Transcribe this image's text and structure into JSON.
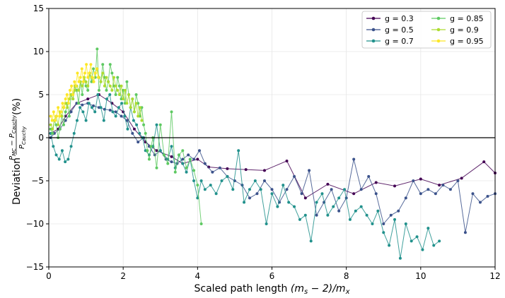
{
  "chart_data": {
    "type": "line",
    "title": "",
    "xlabel_parts": [
      "Scaled path length ",
      "(m",
      "s",
      " − 2)/m",
      "x"
    ],
    "ylabel_parts": [
      "Deviation ",
      "P",
      "MC",
      " − P",
      "Cauchy",
      "P",
      "Cauchy",
      "(%)"
    ],
    "xlim": [
      0,
      12
    ],
    "ylim": [
      -15,
      15
    ],
    "xticks": [
      0,
      2,
      4,
      6,
      8,
      10,
      12
    ],
    "yticks": [
      -15,
      -10,
      -5,
      0,
      5,
      10,
      15
    ],
    "xtick_labels": [
      "0",
      "2",
      "4",
      "6",
      "8",
      "10",
      "12"
    ],
    "ytick_labels": [
      "−15",
      "−10",
      "−5",
      "0",
      "5",
      "10",
      "15"
    ],
    "grid": true,
    "legend_position": "top-right",
    "reference_line": 0,
    "series": [
      {
        "name": "g = 0.3",
        "color": "#440154",
        "x": [
          0.05,
          0.25,
          0.45,
          0.75,
          1.05,
          1.35,
          1.7,
          2.0,
          2.3,
          2.6,
          2.9,
          3.3,
          3.6,
          4.0,
          4.3,
          4.8,
          5.3,
          5.8,
          6.4,
          6.9,
          7.5,
          8.2,
          8.8,
          9.3,
          10.0,
          10.5,
          11.1,
          11.7,
          12.0
        ],
        "y": [
          0.5,
          1.0,
          2.5,
          4.0,
          4.5,
          5.0,
          4.0,
          3.0,
          1.0,
          -0.5,
          -1.5,
          -2.2,
          -3.0,
          -2.5,
          -3.4,
          -3.6,
          -3.7,
          -3.8,
          -2.7,
          -7.0,
          -5.4,
          -6.5,
          -5.2,
          -5.6,
          -4.8,
          -5.5,
          -4.7,
          -2.8,
          -4.1
        ]
      },
      {
        "name": "g = 0.5",
        "color": "#3b528b",
        "x": [
          0.05,
          0.15,
          0.3,
          0.45,
          0.6,
          0.75,
          0.9,
          1.05,
          1.2,
          1.35,
          1.5,
          1.65,
          1.8,
          1.95,
          2.1,
          2.25,
          2.4,
          2.55,
          2.7,
          2.85,
          3.0,
          3.15,
          3.3,
          3.45,
          3.6,
          3.75,
          3.9,
          4.05,
          4.2,
          4.4,
          4.6,
          4.8,
          5.0,
          5.2,
          5.4,
          5.6,
          5.8,
          6.0,
          6.2,
          6.4,
          6.6,
          6.8,
          7.0,
          7.2,
          7.4,
          7.6,
          7.8,
          8.0,
          8.2,
          8.4,
          8.6,
          8.8,
          9.0,
          9.2,
          9.4,
          9.6,
          9.8,
          10.0,
          10.2,
          10.4,
          10.6,
          10.8,
          11.0,
          11.2,
          11.4,
          11.6,
          11.8,
          12.0
        ],
        "y": [
          0.0,
          0.5,
          1.0,
          2.0,
          3.0,
          4.0,
          3.8,
          4.0,
          3.7,
          3.5,
          3.3,
          3.2,
          3.0,
          2.5,
          2.0,
          0.5,
          -0.5,
          0.0,
          -1.0,
          -2.0,
          -1.5,
          -2.5,
          -2.8,
          -3.0,
          -2.5,
          -2.0,
          -2.5,
          -1.5,
          -3.0,
          -4.0,
          -3.5,
          -4.5,
          -5.0,
          -5.5,
          -7.0,
          -6.5,
          -5.0,
          -6.0,
          -7.5,
          -6.0,
          -4.5,
          -6.5,
          -3.8,
          -9.0,
          -7.5,
          -6.0,
          -8.5,
          -7.0,
          -2.5,
          -6.0,
          -4.5,
          -6.5,
          -10.0,
          -9.0,
          -8.5,
          -7.0,
          -5.0,
          -6.5,
          -6.0,
          -6.5,
          -5.5,
          -6.0,
          -5.0,
          -11.0,
          -6.5,
          -7.5,
          -6.8,
          -6.5
        ]
      },
      {
        "name": "g = 0.7",
        "color": "#21918c",
        "x": [
          0.05,
          0.12,
          0.2,
          0.28,
          0.36,
          0.44,
          0.52,
          0.6,
          0.68,
          0.76,
          0.84,
          0.92,
          1.0,
          1.08,
          1.16,
          1.24,
          1.32,
          1.4,
          1.48,
          1.56,
          1.64,
          1.72,
          1.8,
          1.88,
          1.96,
          2.04,
          2.12,
          2.2,
          2.28,
          2.36,
          2.44,
          2.52,
          2.6,
          2.7,
          2.8,
          2.9,
          3.0,
          3.1,
          3.2,
          3.3,
          3.4,
          3.5,
          3.6,
          3.7,
          3.8,
          3.9,
          4.0,
          4.1,
          4.2,
          4.35,
          4.5,
          4.65,
          4.8,
          4.95,
          5.1,
          5.25,
          5.4,
          5.55,
          5.7,
          5.85,
          6.0,
          6.15,
          6.3,
          6.45,
          6.6,
          6.75,
          6.9,
          7.05,
          7.2,
          7.35,
          7.5,
          7.65,
          7.8,
          7.95,
          8.1,
          8.25,
          8.4,
          8.55,
          8.7,
          8.85,
          9.0,
          9.15,
          9.3,
          9.45,
          9.6,
          9.75,
          9.9,
          10.05,
          10.2,
          10.35,
          10.5
        ],
        "y": [
          0.5,
          -1.0,
          -2.0,
          -2.5,
          -1.5,
          -2.8,
          -2.5,
          -1.0,
          0.5,
          2.0,
          3.5,
          3.0,
          2.0,
          4.0,
          3.5,
          3.0,
          5.0,
          3.5,
          2.0,
          4.5,
          5.0,
          3.0,
          2.5,
          3.5,
          4.0,
          2.5,
          1.0,
          3.5,
          2.0,
          1.5,
          0.5,
          0.0,
          -1.5,
          -2.0,
          -1.0,
          1.5,
          -1.5,
          -2.0,
          -2.5,
          -1.0,
          -3.5,
          -2.0,
          -3.0,
          -4.0,
          -2.5,
          -5.0,
          -7.0,
          -5.0,
          -6.0,
          -5.5,
          -6.5,
          -5.0,
          -4.5,
          -6.0,
          -1.5,
          -7.5,
          -6.0,
          -5.0,
          -6.0,
          -10.0,
          -6.5,
          -8.0,
          -5.5,
          -7.5,
          -8.0,
          -9.5,
          -9.0,
          -12.0,
          -7.5,
          -6.5,
          -9.0,
          -8.0,
          -7.0,
          -6.0,
          -9.5,
          -8.5,
          -8.0,
          -9.0,
          -10.0,
          -8.5,
          -11.0,
          -12.5,
          -9.5,
          -14.0,
          -10.0,
          -12.0,
          -11.5,
          -13.0,
          -10.5,
          -12.5,
          -12.0
        ]
      },
      {
        "name": "g = 0.85",
        "color": "#5ec962",
        "x": [
          0.05,
          0.1,
          0.15,
          0.2,
          0.25,
          0.3,
          0.35,
          0.4,
          0.45,
          0.5,
          0.55,
          0.6,
          0.65,
          0.7,
          0.75,
          0.8,
          0.85,
          0.9,
          0.95,
          1.0,
          1.05,
          1.1,
          1.15,
          1.2,
          1.25,
          1.3,
          1.35,
          1.4,
          1.45,
          1.5,
          1.55,
          1.6,
          1.65,
          1.7,
          1.75,
          1.8,
          1.85,
          1.9,
          1.95,
          2.0,
          2.05,
          2.1,
          2.15,
          2.2,
          2.25,
          2.3,
          2.35,
          2.4,
          2.45,
          2.5,
          2.55,
          2.6,
          2.65,
          2.7,
          2.75,
          2.8,
          2.9,
          3.0,
          3.1,
          3.2,
          3.3,
          3.4,
          3.5,
          3.6,
          3.7,
          3.8,
          3.9,
          4.0,
          4.1
        ],
        "y": [
          1.0,
          0.5,
          2.0,
          1.5,
          0.0,
          1.0,
          2.5,
          1.5,
          3.0,
          4.0,
          2.5,
          5.0,
          4.5,
          6.0,
          5.5,
          4.0,
          6.5,
          5.0,
          7.0,
          6.0,
          5.5,
          7.5,
          6.5,
          8.0,
          7.0,
          10.3,
          5.5,
          6.5,
          8.5,
          7.0,
          5.5,
          6.5,
          8.5,
          7.5,
          6.0,
          5.0,
          7.0,
          6.0,
          4.5,
          5.5,
          4.0,
          6.5,
          5.0,
          3.5,
          4.5,
          3.0,
          5.0,
          4.0,
          2.5,
          3.5,
          1.5,
          0.5,
          -1.5,
          -2.5,
          -1.0,
          0.0,
          -3.5,
          1.5,
          -2.0,
          -3.0,
          3.0,
          -4.0,
          -2.0,
          -1.5,
          -3.5,
          -2.5,
          -3.8,
          -5.5,
          -10.0
        ]
      },
      {
        "name": "g = 0.9",
        "color": "#addc30",
        "x": [
          0.05,
          0.1,
          0.15,
          0.2,
          0.25,
          0.3,
          0.35,
          0.4,
          0.45,
          0.5,
          0.55,
          0.6,
          0.65,
          0.7,
          0.75,
          0.8,
          0.85,
          0.9,
          0.95,
          1.0,
          1.05,
          1.1,
          1.15,
          1.2,
          1.25,
          1.3,
          1.35,
          1.4,
          1.45,
          1.5,
          1.55,
          1.6,
          1.65,
          1.7,
          1.75,
          1.8,
          1.85,
          1.9,
          1.95,
          2.0,
          2.05,
          2.1,
          2.15,
          2.2,
          2.25,
          2.3,
          2.35,
          2.4,
          2.45,
          2.5
        ],
        "y": [
          1.5,
          1.0,
          2.0,
          2.5,
          1.5,
          3.0,
          2.5,
          3.5,
          4.0,
          3.5,
          4.5,
          5.0,
          4.5,
          5.5,
          6.0,
          5.5,
          6.5,
          6.0,
          7.0,
          6.5,
          6.0,
          7.5,
          7.0,
          6.5,
          7.5,
          8.0,
          7.0,
          6.5,
          7.5,
          6.0,
          7.0,
          6.5,
          6.0,
          5.5,
          7.0,
          6.0,
          5.5,
          5.0,
          6.0,
          4.5,
          5.5,
          4.0,
          5.0,
          3.5,
          4.5,
          3.0,
          4.0,
          2.5,
          3.5,
          2.0
        ]
      },
      {
        "name": "g = 0.95",
        "color": "#fde725",
        "x": [
          0.05,
          0.09,
          0.13,
          0.17,
          0.21,
          0.25,
          0.29,
          0.33,
          0.37,
          0.41,
          0.45,
          0.49,
          0.53,
          0.57,
          0.61,
          0.65,
          0.69,
          0.73,
          0.77,
          0.81,
          0.85,
          0.89,
          0.93,
          0.97,
          1.01,
          1.05,
          1.09,
          1.13,
          1.17,
          1.21,
          1.25,
          1.29,
          1.33
        ],
        "y": [
          2.5,
          2.0,
          3.0,
          2.0,
          2.5,
          3.5,
          2.5,
          3.0,
          4.0,
          3.5,
          4.5,
          5.0,
          4.0,
          5.5,
          6.0,
          5.0,
          6.5,
          6.0,
          7.5,
          6.5,
          7.0,
          8.0,
          6.5,
          7.5,
          8.5,
          7.0,
          7.5,
          8.5,
          7.0,
          6.5,
          7.5,
          8.0,
          7.0
        ]
      }
    ]
  }
}
